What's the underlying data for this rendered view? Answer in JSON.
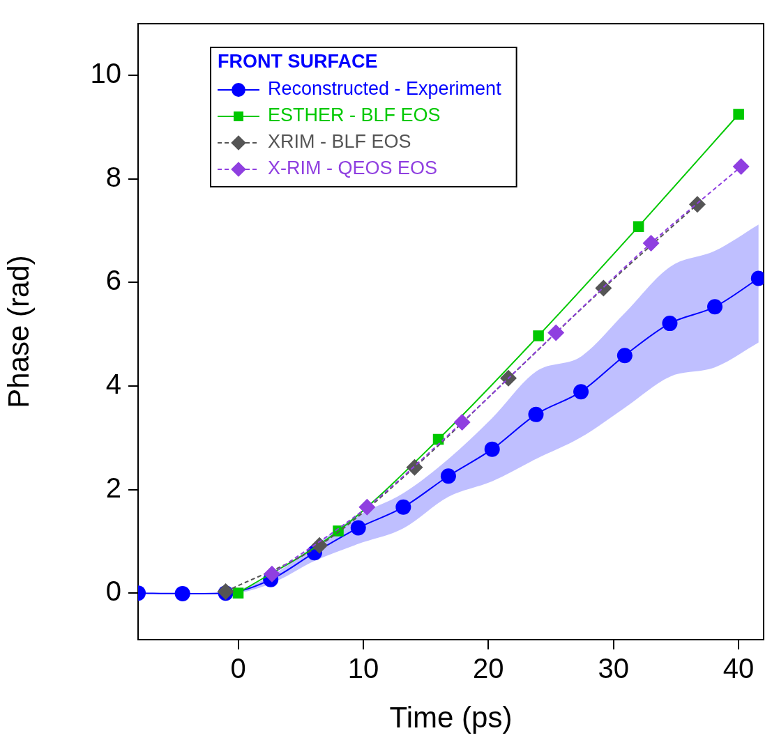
{
  "chart_data": {
    "type": "line",
    "xlabel": "Time (ps)",
    "ylabel": "Phase (rad)",
    "legend_title": "FRONT SURFACE",
    "legend": "top left",
    "xlim": [
      -8,
      42
    ],
    "xticks": [
      0,
      10,
      20,
      30,
      40
    ],
    "ylim": [
      -0.9,
      11
    ],
    "yticks": [
      0,
      2,
      4,
      6,
      8,
      10
    ],
    "grid": false,
    "series": [
      {
        "name": "Reconstructed - Experiment",
        "color": "#0000ff",
        "marker": "circle",
        "line_style": "solid",
        "x": [
          -8,
          -4.45,
          -1,
          2.6,
          6.1,
          9.6,
          13.2,
          16.8,
          20.3,
          23.8,
          27.4,
          30.9,
          34.5,
          38.1,
          41.6
        ],
        "values": [
          0,
          -0.01,
          0,
          0.26,
          0.78,
          1.26,
          1.66,
          2.26,
          2.78,
          3.45,
          3.89,
          4.59,
          5.21,
          5.53,
          6.08
        ],
        "lower": [
          0,
          -0.01,
          -0.02,
          0.18,
          0.62,
          0.95,
          1.25,
          1.86,
          2.16,
          2.59,
          3.01,
          3.58,
          4.18,
          4.36,
          4.84
        ],
        "upper": [
          0,
          -0.01,
          0.02,
          0.33,
          0.92,
          1.5,
          1.93,
          2.59,
          3.38,
          4.28,
          4.57,
          5.41,
          6.3,
          6.61,
          7.12
        ]
      },
      {
        "name": "ESTHER - BLF EOS",
        "color": "#00c800",
        "marker": "square",
        "line_style": "solid",
        "x": [
          0,
          8,
          16,
          24,
          32,
          40
        ],
        "values": [
          0,
          1.2,
          2.97,
          4.97,
          7.08,
          9.25
        ]
      },
      {
        "name": "XRIM - BLF EOS",
        "color": "#555555",
        "marker": "diamond",
        "line_style": "dashed",
        "x": [
          -1,
          6.5,
          14.1,
          21.6,
          29.2,
          36.7
        ],
        "values": [
          0.03,
          0.92,
          2.43,
          4.15,
          5.89,
          7.51
        ]
      },
      {
        "name": "X-RIM - QEOS EOS",
        "color": "#8f3fe0",
        "marker": "diamond",
        "line_style": "dashed",
        "x": [
          2.7,
          10.3,
          17.9,
          25.4,
          33,
          40.2
        ],
        "values": [
          0.37,
          1.66,
          3.3,
          5.03,
          6.76,
          8.24
        ]
      }
    ]
  }
}
